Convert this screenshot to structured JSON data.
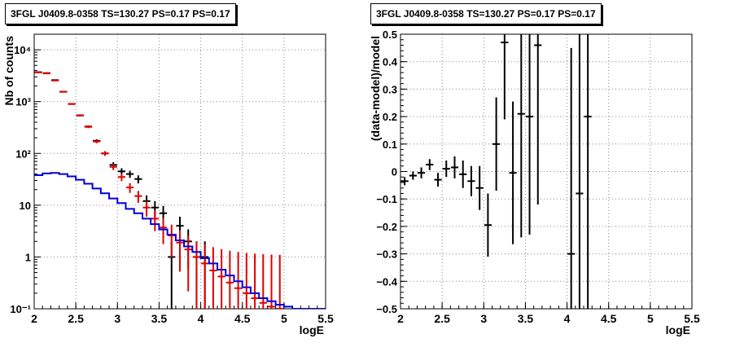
{
  "chart_data": [
    {
      "type": "scatter",
      "title": "3FGL J0409.8-0358 TS=130.27 PS=0.17 PS=0.17",
      "xlabel": "logE",
      "ylabel": "Nb of counts",
      "xlim": [
        2,
        5.5
      ],
      "ylim": [
        0.1,
        20000
      ],
      "yscale": "log",
      "grid": true,
      "x_ticks": [
        "2",
        "2.5",
        "3",
        "3.5",
        "4",
        "4.5",
        "5",
        "5.5"
      ],
      "y_ticks": [
        "10⁻¹",
        "1",
        "10",
        "10²",
        "10³",
        "10⁴"
      ],
      "series": [
        {
          "style": "errorbar",
          "color": "#000000",
          "points": [
            {
              "x": 2.05,
              "y": 3700
            },
            {
              "x": 2.15,
              "y": 3550
            },
            {
              "x": 2.25,
              "y": 2600
            },
            {
              "x": 2.35,
              "y": 1550
            },
            {
              "x": 2.45,
              "y": 900
            },
            {
              "x": 2.55,
              "y": 540
            },
            {
              "x": 2.65,
              "y": 330
            },
            {
              "x": 2.75,
              "y": 175
            },
            {
              "x": 2.85,
              "y": 100
            },
            {
              "x": 2.95,
              "y": 60
            },
            {
              "x": 3.05,
              "y": 45
            },
            {
              "x": 3.15,
              "y": 40
            },
            {
              "x": 3.25,
              "y": 32
            },
            {
              "x": 3.35,
              "y": 12
            },
            {
              "x": 3.45,
              "y": 9
            },
            {
              "x": 3.55,
              "y": 7
            },
            {
              "x": 3.65,
              "y": 1
            },
            {
              "x": 3.75,
              "y": 4
            },
            {
              "x": 3.85,
              "y": 2
            },
            {
              "x": 3.95,
              "y": 1
            },
            {
              "x": 4.05,
              "y": 1
            }
          ]
        },
        {
          "style": "errorbar",
          "color": "#e00000",
          "points": [
            {
              "x": 2.05,
              "y": 3650
            },
            {
              "x": 2.15,
              "y": 3500
            },
            {
              "x": 2.25,
              "y": 2550
            },
            {
              "x": 2.35,
              "y": 1550
            },
            {
              "x": 2.45,
              "y": 900
            },
            {
              "x": 2.55,
              "y": 545
            },
            {
              "x": 2.65,
              "y": 325
            },
            {
              "x": 2.75,
              "y": 170
            },
            {
              "x": 2.85,
              "y": 100
            },
            {
              "x": 2.95,
              "y": 55
            },
            {
              "x": 3.05,
              "y": 35
            },
            {
              "x": 3.15,
              "y": 22
            },
            {
              "x": 3.25,
              "y": 15
            },
            {
              "x": 3.35,
              "y": 9
            },
            {
              "x": 3.45,
              "y": 5.5
            },
            {
              "x": 3.55,
              "y": 3.7
            },
            {
              "x": 3.65,
              "y": 2.6
            },
            {
              "x": 3.75,
              "y": 1.9
            },
            {
              "x": 3.85,
              "y": 1.4
            },
            {
              "x": 3.95,
              "y": 1.0
            },
            {
              "x": 4.05,
              "y": 0.75
            },
            {
              "x": 4.15,
              "y": 0.55
            },
            {
              "x": 4.25,
              "y": 0.42
            },
            {
              "x": 4.35,
              "y": 0.32
            },
            {
              "x": 4.45,
              "y": 0.25
            },
            {
              "x": 4.55,
              "y": 0.2
            },
            {
              "x": 4.65,
              "y": 0.16
            },
            {
              "x": 4.75,
              "y": 0.13
            },
            {
              "x": 4.85,
              "y": 0.11
            },
            {
              "x": 4.95,
              "y": 0.1
            }
          ]
        },
        {
          "style": "step",
          "color": "#0000dd",
          "points": [
            {
              "x": 2.05,
              "y": 38
            },
            {
              "x": 2.15,
              "y": 41
            },
            {
              "x": 2.25,
              "y": 42
            },
            {
              "x": 2.35,
              "y": 40
            },
            {
              "x": 2.45,
              "y": 36
            },
            {
              "x": 2.55,
              "y": 31
            },
            {
              "x": 2.65,
              "y": 26
            },
            {
              "x": 2.75,
              "y": 21
            },
            {
              "x": 2.85,
              "y": 17
            },
            {
              "x": 2.95,
              "y": 13.5
            },
            {
              "x": 3.05,
              "y": 11
            },
            {
              "x": 3.15,
              "y": 8.5
            },
            {
              "x": 3.25,
              "y": 7
            },
            {
              "x": 3.35,
              "y": 5.5
            },
            {
              "x": 3.45,
              "y": 4.3
            },
            {
              "x": 3.55,
              "y": 3.4
            },
            {
              "x": 3.65,
              "y": 2.7
            },
            {
              "x": 3.75,
              "y": 2.1
            },
            {
              "x": 3.85,
              "y": 1.6
            },
            {
              "x": 3.95,
              "y": 1.25
            },
            {
              "x": 4.05,
              "y": 0.95
            },
            {
              "x": 4.15,
              "y": 0.75
            },
            {
              "x": 4.25,
              "y": 0.57
            },
            {
              "x": 4.35,
              "y": 0.44
            },
            {
              "x": 4.45,
              "y": 0.34
            },
            {
              "x": 4.55,
              "y": 0.26
            },
            {
              "x": 4.65,
              "y": 0.2
            },
            {
              "x": 4.75,
              "y": 0.16
            },
            {
              "x": 4.85,
              "y": 0.14
            },
            {
              "x": 4.95,
              "y": 0.12
            },
            {
              "x": 5.05,
              "y": 0.11
            },
            {
              "x": 5.15,
              "y": 0.1
            },
            {
              "x": 5.25,
              "y": 0.1
            },
            {
              "x": 5.35,
              "y": 0.1
            },
            {
              "x": 5.45,
              "y": 0.1
            }
          ]
        }
      ]
    },
    {
      "type": "scatter",
      "title": "3FGL J0409.8-0358 TS=130.27 PS=0.17 PS=0.17",
      "xlabel": "logE",
      "ylabel": "(data-model)/model",
      "xlim": [
        2,
        5.5
      ],
      "ylim": [
        -0.5,
        0.5
      ],
      "grid": true,
      "x_ticks": [
        "2",
        "2.5",
        "3",
        "3.5",
        "4",
        "4.5",
        "5",
        "5.5"
      ],
      "y_ticks": [
        "−0.5",
        "−0.4",
        "−0.3",
        "−0.2",
        "−0.1",
        "0",
        "0.1",
        "0.2",
        "0.3",
        "0.4",
        "0.5"
      ],
      "series": [
        {
          "style": "errorbar",
          "color": "#000000",
          "points": [
            {
              "x": 2.05,
              "y": -0.035,
              "err": 0.015
            },
            {
              "x": 2.15,
              "y": -0.015,
              "err": 0.015
            },
            {
              "x": 2.25,
              "y": -0.005,
              "err": 0.02
            },
            {
              "x": 2.35,
              "y": 0.025,
              "err": 0.02
            },
            {
              "x": 2.45,
              "y": -0.03,
              "err": 0.025
            },
            {
              "x": 2.55,
              "y": 0.01,
              "err": 0.03
            },
            {
              "x": 2.65,
              "y": 0.015,
              "err": 0.04
            },
            {
              "x": 2.75,
              "y": -0.01,
              "err": 0.05
            },
            {
              "x": 2.85,
              "y": -0.035,
              "err": 0.055
            },
            {
              "x": 2.95,
              "y": -0.06,
              "err": 0.08
            },
            {
              "x": 3.05,
              "y": -0.195,
              "err": 0.115
            },
            {
              "x": 3.15,
              "y": 0.1,
              "err": 0.17
            },
            {
              "x": 3.25,
              "y": 0.47,
              "err": 0.28
            },
            {
              "x": 3.35,
              "y": -0.005,
              "err": 0.26
            },
            {
              "x": 3.45,
              "y": 0.21,
              "err": 0.45
            },
            {
              "x": 3.55,
              "y": 0.2,
              "err": 0.43
            },
            {
              "x": 3.65,
              "y": 0.46,
              "err": 0.58
            },
            {
              "x": 4.05,
              "y": -0.3,
              "err": 0.75
            },
            {
              "x": 4.15,
              "y": -0.08,
              "err": 1.0
            },
            {
              "x": 4.25,
              "y": 0.2,
              "err": 1.0
            }
          ]
        }
      ]
    }
  ]
}
